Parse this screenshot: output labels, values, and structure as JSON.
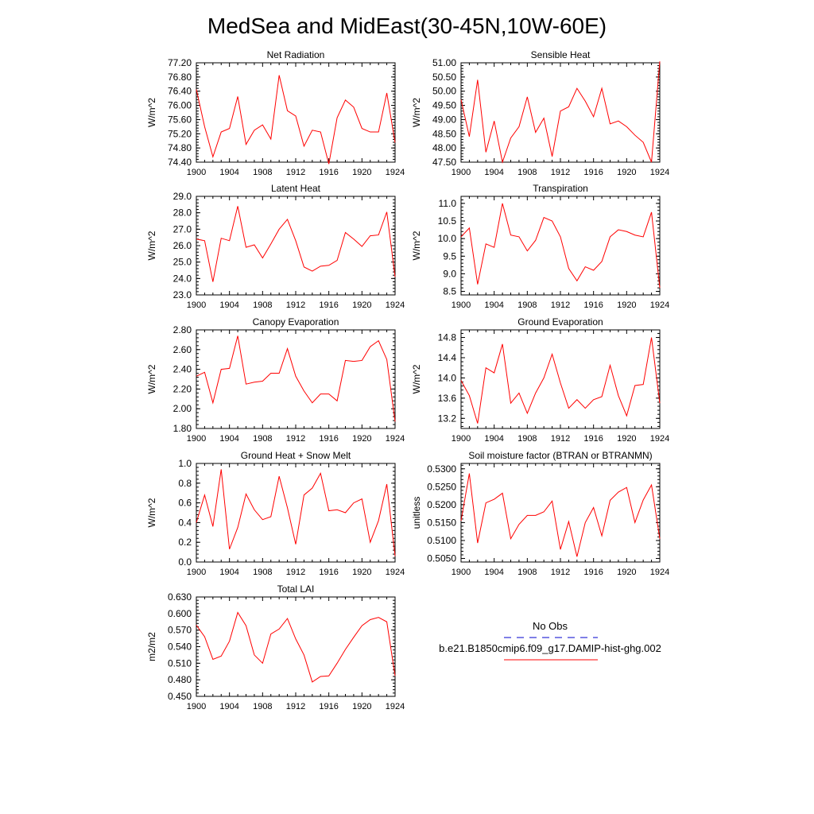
{
  "page": {
    "title": "MedSea and MidEast(30-45N,10W-60E)"
  },
  "colors": {
    "series": "#ff0000",
    "obs": "#0000cc",
    "axis": "#000000"
  },
  "legend": {
    "obs_label": "No Obs",
    "model_label": "b.e21.B1850cmip6.f09_g17.DAMIP-hist-ghg.002"
  },
  "chart_data": [
    {
      "type": "line",
      "title": "Net Radiation",
      "ylabel": "W/m^2",
      "xlabel": "",
      "xlim": [
        1900,
        1924
      ],
      "xticks": [
        1900,
        1904,
        1908,
        1912,
        1916,
        1920,
        1924
      ],
      "ylim": [
        74.4,
        77.2
      ],
      "yticks": [
        "74.40",
        "74.80",
        "75.20",
        "75.60",
        "76.00",
        "76.40",
        "76.80",
        "77.20"
      ],
      "x": [
        1900,
        1901,
        1902,
        1903,
        1904,
        1905,
        1906,
        1907,
        1908,
        1909,
        1910,
        1911,
        1912,
        1913,
        1914,
        1915,
        1916,
        1917,
        1918,
        1919,
        1920,
        1921,
        1922,
        1923,
        1924
      ],
      "series": [
        {
          "values": [
            76.45,
            75.4,
            74.55,
            75.25,
            75.35,
            76.25,
            74.9,
            75.3,
            75.45,
            75.05,
            76.85,
            75.85,
            75.7,
            74.85,
            75.3,
            75.25,
            74.35,
            75.65,
            76.15,
            75.95,
            75.35,
            75.25,
            75.25,
            76.35,
            74.95
          ]
        }
      ]
    },
    {
      "type": "line",
      "title": "Sensible Heat",
      "ylabel": "W/m^2",
      "xlabel": "",
      "xlim": [
        1900,
        1924
      ],
      "xticks": [
        1900,
        1904,
        1908,
        1912,
        1916,
        1920,
        1924
      ],
      "ylim": [
        47.5,
        51.0
      ],
      "yticks": [
        "47.50",
        "48.00",
        "48.50",
        "49.00",
        "49.50",
        "50.00",
        "50.50",
        "51.00"
      ],
      "x": [
        1900,
        1901,
        1902,
        1903,
        1904,
        1905,
        1906,
        1907,
        1908,
        1909,
        1910,
        1911,
        1912,
        1913,
        1914,
        1915,
        1916,
        1917,
        1918,
        1919,
        1920,
        1921,
        1922,
        1923,
        1924
      ],
      "series": [
        {
          "values": [
            49.7,
            48.4,
            50.4,
            47.85,
            48.95,
            47.5,
            48.35,
            48.75,
            49.8,
            48.55,
            49.05,
            47.7,
            49.3,
            49.45,
            50.1,
            49.65,
            49.1,
            50.1,
            48.85,
            48.95,
            48.75,
            48.45,
            48.2,
            47.5,
            51.05
          ]
        }
      ]
    },
    {
      "type": "line",
      "title": "Latent Heat",
      "ylabel": "W/m^2",
      "xlabel": "",
      "xlim": [
        1900,
        1924
      ],
      "xticks": [
        1900,
        1904,
        1908,
        1912,
        1916,
        1920,
        1924
      ],
      "ylim": [
        23.0,
        29.0
      ],
      "yticks": [
        "23.0",
        "24.0",
        "25.0",
        "26.0",
        "27.0",
        "28.0",
        "29.0"
      ],
      "x": [
        1900,
        1901,
        1902,
        1903,
        1904,
        1905,
        1906,
        1907,
        1908,
        1909,
        1910,
        1911,
        1912,
        1913,
        1914,
        1915,
        1916,
        1917,
        1918,
        1919,
        1920,
        1921,
        1922,
        1923,
        1924
      ],
      "series": [
        {
          "values": [
            26.4,
            26.3,
            23.8,
            26.45,
            26.3,
            28.4,
            25.9,
            26.05,
            25.25,
            26.1,
            27.0,
            27.6,
            26.3,
            24.7,
            24.45,
            24.75,
            24.8,
            25.1,
            26.8,
            26.4,
            25.95,
            26.6,
            26.65,
            28.05,
            24.1
          ]
        }
      ]
    },
    {
      "type": "line",
      "title": "Transpiration",
      "ylabel": "W/m^2",
      "xlabel": "",
      "xlim": [
        1900,
        1924
      ],
      "xticks": [
        1900,
        1904,
        1908,
        1912,
        1916,
        1920,
        1924
      ],
      "ylim": [
        8.4,
        11.2
      ],
      "yticks": [
        "8.5",
        "9.0",
        "9.5",
        "10.0",
        "10.5",
        "11.0"
      ],
      "x": [
        1900,
        1901,
        1902,
        1903,
        1904,
        1905,
        1906,
        1907,
        1908,
        1909,
        1910,
        1911,
        1912,
        1913,
        1914,
        1915,
        1916,
        1917,
        1918,
        1919,
        1920,
        1921,
        1922,
        1923,
        1924
      ],
      "series": [
        {
          "values": [
            10.05,
            10.3,
            8.7,
            9.85,
            9.75,
            11.0,
            10.1,
            10.05,
            9.65,
            9.95,
            10.6,
            10.5,
            10.05,
            9.15,
            8.8,
            9.2,
            9.1,
            9.35,
            10.05,
            10.25,
            10.2,
            10.1,
            10.05,
            10.75,
            8.6
          ]
        }
      ]
    },
    {
      "type": "line",
      "title": "Canopy Evaporation",
      "ylabel": "W/m^2",
      "xlabel": "",
      "xlim": [
        1900,
        1924
      ],
      "xticks": [
        1900,
        1904,
        1908,
        1912,
        1916,
        1920,
        1924
      ],
      "ylim": [
        1.8,
        2.8
      ],
      "yticks": [
        "1.80",
        "2.00",
        "2.20",
        "2.40",
        "2.60",
        "2.80"
      ],
      "x": [
        1900,
        1901,
        1902,
        1903,
        1904,
        1905,
        1906,
        1907,
        1908,
        1909,
        1910,
        1911,
        1912,
        1913,
        1914,
        1915,
        1916,
        1917,
        1918,
        1919,
        1920,
        1921,
        1922,
        1923,
        1924
      ],
      "series": [
        {
          "values": [
            2.33,
            2.37,
            2.06,
            2.4,
            2.41,
            2.74,
            2.25,
            2.27,
            2.28,
            2.36,
            2.36,
            2.61,
            2.33,
            2.18,
            2.06,
            2.15,
            2.15,
            2.08,
            2.49,
            2.48,
            2.49,
            2.63,
            2.69,
            2.5,
            1.87
          ]
        }
      ]
    },
    {
      "type": "line",
      "title": "Ground Evaporation",
      "ylabel": "W/m^2",
      "xlabel": "",
      "xlim": [
        1900,
        1924
      ],
      "xticks": [
        1900,
        1904,
        1908,
        1912,
        1916,
        1920,
        1924
      ],
      "ylim": [
        13.0,
        14.95
      ],
      "yticks": [
        "13.2",
        "13.6",
        "14.0",
        "14.4",
        "14.8"
      ],
      "x": [
        1900,
        1901,
        1902,
        1903,
        1904,
        1905,
        1906,
        1907,
        1908,
        1909,
        1910,
        1911,
        1912,
        1913,
        1914,
        1915,
        1916,
        1917,
        1918,
        1919,
        1920,
        1921,
        1922,
        1923,
        1924
      ],
      "series": [
        {
          "values": [
            13.95,
            13.65,
            13.1,
            14.2,
            14.1,
            14.67,
            13.5,
            13.7,
            13.3,
            13.7,
            14.0,
            14.47,
            13.9,
            13.4,
            13.57,
            13.4,
            13.57,
            13.63,
            14.25,
            13.65,
            13.25,
            13.85,
            13.87,
            14.8,
            13.5
          ]
        }
      ]
    },
    {
      "type": "line",
      "title": "Ground Heat + Snow Melt",
      "ylabel": "W/m^2",
      "xlabel": "",
      "xlim": [
        1900,
        1924
      ],
      "xticks": [
        1900,
        1904,
        1908,
        1912,
        1916,
        1920,
        1924
      ],
      "ylim": [
        0.0,
        1.0
      ],
      "yticks": [
        "0.0",
        "0.2",
        "0.4",
        "0.6",
        "0.8",
        "1.0"
      ],
      "x": [
        1900,
        1901,
        1902,
        1903,
        1904,
        1905,
        1906,
        1907,
        1908,
        1909,
        1910,
        1911,
        1912,
        1913,
        1914,
        1915,
        1916,
        1917,
        1918,
        1919,
        1920,
        1921,
        1922,
        1923,
        1924
      ],
      "series": [
        {
          "values": [
            0.4,
            0.68,
            0.36,
            0.94,
            0.13,
            0.35,
            0.69,
            0.53,
            0.43,
            0.46,
            0.87,
            0.55,
            0.18,
            0.68,
            0.75,
            0.9,
            0.52,
            0.53,
            0.5,
            0.6,
            0.64,
            0.2,
            0.42,
            0.79,
            0.06
          ]
        }
      ]
    },
    {
      "type": "line",
      "title": "Soil moisture factor (BTRAN or BTRANMN)",
      "ylabel": "unitless",
      "xlabel": "",
      "xlim": [
        1900,
        1924
      ],
      "xticks": [
        1900,
        1904,
        1908,
        1912,
        1916,
        1920,
        1924
      ],
      "ylim": [
        0.504,
        0.5315
      ],
      "yticks": [
        "0.5050",
        "0.5100",
        "0.5150",
        "0.5200",
        "0.5250",
        "0.5300"
      ],
      "x": [
        1900,
        1901,
        1902,
        1903,
        1904,
        1905,
        1906,
        1907,
        1908,
        1909,
        1910,
        1911,
        1912,
        1913,
        1914,
        1915,
        1916,
        1917,
        1918,
        1919,
        1920,
        1921,
        1922,
        1923,
        1924
      ],
      "series": [
        {
          "values": [
            0.5155,
            0.5287,
            0.5093,
            0.5205,
            0.5215,
            0.5232,
            0.5105,
            0.5145,
            0.517,
            0.517,
            0.518,
            0.521,
            0.5075,
            0.5153,
            0.5055,
            0.515,
            0.5192,
            0.5113,
            0.5212,
            0.5235,
            0.5248,
            0.515,
            0.5213,
            0.5255,
            0.5105
          ]
        }
      ]
    },
    {
      "type": "line",
      "title": "Total LAI",
      "ylabel": "m2/m2",
      "xlabel": "",
      "xlim": [
        1900,
        1924
      ],
      "xticks": [
        1900,
        1904,
        1908,
        1912,
        1916,
        1920,
        1924
      ],
      "ylim": [
        0.45,
        0.63
      ],
      "yticks": [
        "0.450",
        "0.480",
        "0.510",
        "0.540",
        "0.570",
        "0.600",
        "0.630"
      ],
      "x": [
        1900,
        1901,
        1902,
        1903,
        1904,
        1905,
        1906,
        1907,
        1908,
        1909,
        1910,
        1911,
        1912,
        1913,
        1914,
        1915,
        1916,
        1917,
        1918,
        1919,
        1920,
        1921,
        1922,
        1923,
        1924
      ],
      "series": [
        {
          "values": [
            0.579,
            0.558,
            0.517,
            0.523,
            0.55,
            0.602,
            0.578,
            0.525,
            0.51,
            0.563,
            0.572,
            0.591,
            0.554,
            0.525,
            0.476,
            0.486,
            0.487,
            0.51,
            0.535,
            0.557,
            0.578,
            0.589,
            0.593,
            0.585,
            0.487
          ]
        }
      ]
    }
  ]
}
